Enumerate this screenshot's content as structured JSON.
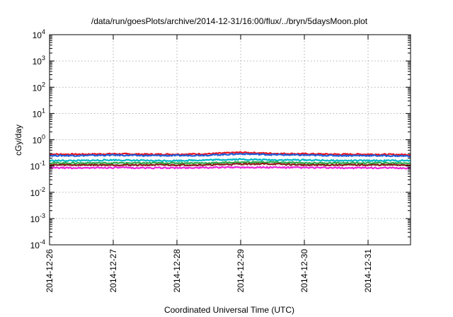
{
  "chart_data": {
    "type": "line",
    "title": "/data/run/goesPlots/archive/2014-12-31/16:00/flux/../bryn/5daysMoon.plot",
    "xlabel": "Coordinated Universal Time (UTC)",
    "ylabel": "cGy/day",
    "yscale": "log",
    "ylim": [
      0.0001,
      10000
    ],
    "xlim": [
      "2014-12-26",
      "2014-12-31T16:00"
    ],
    "x_ticks": [
      "2014-12-26",
      "2014-12-27",
      "2014-12-28",
      "2014-12-29",
      "2014-12-30",
      "2014-12-31"
    ],
    "y_ticks": [
      {
        "base": "10",
        "exp": "-4",
        "value": 0.0001
      },
      {
        "base": "10",
        "exp": "-3",
        "value": 0.001
      },
      {
        "base": "10",
        "exp": "-2",
        "value": 0.01
      },
      {
        "base": "10",
        "exp": "-1",
        "value": 0.1
      },
      {
        "base": "10",
        "exp": "0",
        "value": 1
      },
      {
        "base": "10",
        "exp": "1",
        "value": 10
      },
      {
        "base": "10",
        "exp": "2",
        "value": 100
      },
      {
        "base": "10",
        "exp": "3",
        "value": 1000
      },
      {
        "base": "10",
        "exp": "4",
        "value": 10000
      }
    ],
    "grid": true,
    "legend": "none",
    "series": [
      {
        "color": "#e8141e",
        "points": [
          [
            "2014-12-26T00:00",
            0.28
          ],
          [
            "2014-12-26T12:00",
            0.28
          ],
          [
            "2014-12-27T00:00",
            0.29
          ],
          [
            "2014-12-27T12:00",
            0.28
          ],
          [
            "2014-12-28T00:00",
            0.28
          ],
          [
            "2014-12-28T12:00",
            0.29
          ],
          [
            "2014-12-29T00:00",
            0.33
          ],
          [
            "2014-12-29T12:00",
            0.3
          ],
          [
            "2014-12-30T00:00",
            0.29
          ],
          [
            "2014-12-30T12:00",
            0.28
          ],
          [
            "2014-12-31T00:00",
            0.28
          ],
          [
            "2014-12-31T16:00",
            0.27
          ]
        ]
      },
      {
        "color": "#1f5fd8",
        "points": [
          [
            "2014-12-26T00:00",
            0.25
          ],
          [
            "2014-12-26T12:00",
            0.25
          ],
          [
            "2014-12-27T00:00",
            0.26
          ],
          [
            "2014-12-27T12:00",
            0.25
          ],
          [
            "2014-12-28T00:00",
            0.25
          ],
          [
            "2014-12-28T12:00",
            0.26
          ],
          [
            "2014-12-29T00:00",
            0.29
          ],
          [
            "2014-12-29T12:00",
            0.27
          ],
          [
            "2014-12-30T00:00",
            0.26
          ],
          [
            "2014-12-30T12:00",
            0.25
          ],
          [
            "2014-12-31T00:00",
            0.25
          ],
          [
            "2014-12-31T16:00",
            0.24
          ]
        ]
      },
      {
        "color": "#00b8c8",
        "points": [
          [
            "2014-12-26T00:00",
            0.16
          ],
          [
            "2014-12-26T12:00",
            0.16
          ],
          [
            "2014-12-27T00:00",
            0.17
          ],
          [
            "2014-12-27T12:00",
            0.16
          ],
          [
            "2014-12-28T00:00",
            0.16
          ],
          [
            "2014-12-28T12:00",
            0.17
          ],
          [
            "2014-12-29T00:00",
            0.18
          ],
          [
            "2014-12-29T12:00",
            0.17
          ],
          [
            "2014-12-30T00:00",
            0.17
          ],
          [
            "2014-12-30T12:00",
            0.16
          ],
          [
            "2014-12-31T00:00",
            0.16
          ],
          [
            "2014-12-31T16:00",
            0.16
          ]
        ]
      },
      {
        "color": "#2eaa4a",
        "points": [
          [
            "2014-12-26T00:00",
            0.13
          ],
          [
            "2014-12-26T12:00",
            0.13
          ],
          [
            "2014-12-27T00:00",
            0.13
          ],
          [
            "2014-12-27T12:00",
            0.13
          ],
          [
            "2014-12-28T00:00",
            0.13
          ],
          [
            "2014-12-28T12:00",
            0.13
          ],
          [
            "2014-12-29T00:00",
            0.14
          ],
          [
            "2014-12-29T12:00",
            0.14
          ],
          [
            "2014-12-30T00:00",
            0.13
          ],
          [
            "2014-12-30T12:00",
            0.13
          ],
          [
            "2014-12-31T00:00",
            0.13
          ],
          [
            "2014-12-31T16:00",
            0.13
          ]
        ]
      },
      {
        "color": "#8b1a1a",
        "points": [
          [
            "2014-12-26T00:00",
            0.11
          ],
          [
            "2014-12-26T12:00",
            0.11
          ],
          [
            "2014-12-27T00:00",
            0.11
          ],
          [
            "2014-12-27T12:00",
            0.11
          ],
          [
            "2014-12-28T00:00",
            0.11
          ],
          [
            "2014-12-28T12:00",
            0.11
          ],
          [
            "2014-12-29T00:00",
            0.12
          ],
          [
            "2014-12-29T12:00",
            0.12
          ],
          [
            "2014-12-30T00:00",
            0.11
          ],
          [
            "2014-12-30T12:00",
            0.11
          ],
          [
            "2014-12-31T00:00",
            0.11
          ],
          [
            "2014-12-31T16:00",
            0.11
          ]
        ]
      },
      {
        "color": "#ee22dd",
        "points": [
          [
            "2014-12-26T00:00",
            0.085
          ],
          [
            "2014-12-26T12:00",
            0.085
          ],
          [
            "2014-12-27T00:00",
            0.087
          ],
          [
            "2014-12-27T12:00",
            0.085
          ],
          [
            "2014-12-28T00:00",
            0.085
          ],
          [
            "2014-12-28T12:00",
            0.087
          ],
          [
            "2014-12-29T00:00",
            0.09
          ],
          [
            "2014-12-29T12:00",
            0.088
          ],
          [
            "2014-12-30T00:00",
            0.087
          ],
          [
            "2014-12-30T12:00",
            0.085
          ],
          [
            "2014-12-31T00:00",
            0.085
          ],
          [
            "2014-12-31T16:00",
            0.083
          ]
        ]
      }
    ]
  }
}
